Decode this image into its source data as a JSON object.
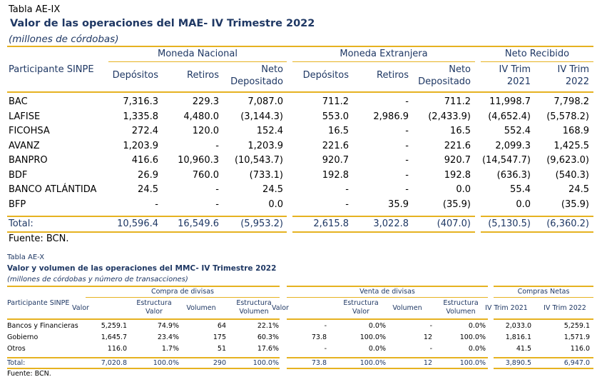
{
  "table1": {
    "label": "Tabla AE-IX",
    "title": "Valor de las operaciones del MAE- IV Trimestre 2022",
    "subtitle": "(millones de córdobas)",
    "groups": [
      "Moneda Nacional",
      "Moneda Extranjera",
      "Neto Recibido"
    ],
    "participant_header": "Participante SINPE",
    "col_headers": [
      [
        "Depósitos"
      ],
      [
        "Retiros"
      ],
      [
        "Neto",
        "Depositado"
      ],
      [
        "Depósitos"
      ],
      [
        "Retiros"
      ],
      [
        "Neto",
        "Depositado"
      ],
      [
        "IV Trim",
        "2021"
      ],
      [
        "IV Trim",
        "2022"
      ]
    ],
    "rows": [
      {
        "name": "BAC",
        "values": [
          "7,316.3",
          "229.3",
          "7,087.0",
          "711.2",
          "-",
          "711.2",
          "11,998.7",
          "7,798.2"
        ]
      },
      {
        "name": "LAFISE",
        "values": [
          "1,335.8",
          "4,480.0",
          "(3,144.3)",
          "553.0",
          "2,986.9",
          "(2,433.9)",
          "(4,652.4)",
          "(5,578.2)"
        ]
      },
      {
        "name": "FICOHSA",
        "values": [
          "272.4",
          "120.0",
          "152.4",
          "16.5",
          "-",
          "16.5",
          "552.4",
          "168.9"
        ]
      },
      {
        "name": "AVANZ",
        "values": [
          "1,203.9",
          "-",
          "1,203.9",
          "221.6",
          "-",
          "221.6",
          "2,099.3",
          "1,425.5"
        ]
      },
      {
        "name": "BANPRO",
        "values": [
          "416.6",
          "10,960.3",
          "(10,543.7)",
          "920.7",
          "-",
          "920.7",
          "(14,547.7)",
          "(9,623.0)"
        ]
      },
      {
        "name": "BDF",
        "values": [
          "26.9",
          "760.0",
          "(733.1)",
          "192.8",
          "-",
          "192.8",
          "(636.3)",
          "(540.3)"
        ]
      },
      {
        "name": "BANCO ATLÁNTIDA",
        "values": [
          "24.5",
          "-",
          "24.5",
          "-",
          "-",
          "0.0",
          "55.4",
          "24.5"
        ]
      },
      {
        "name": "BFP",
        "values": [
          "-",
          "-",
          "0.0",
          "-",
          "35.9",
          "(35.9)",
          "0.0",
          "(35.9)"
        ]
      }
    ],
    "total": {
      "name": "Total:",
      "values": [
        "10,596.4",
        "16,549.6",
        "(5,953.2)",
        "2,615.8",
        "3,022.8",
        "(407.0)",
        "(5,130.5)",
        "(6,360.2)"
      ]
    },
    "source": "Fuente: BCN."
  },
  "table2": {
    "label": "Tabla AE-X",
    "title": "Valor y volumen de las operaciones del MMC- IV Trimestre 2022",
    "subtitle": "(millones de córdobas y número de transacciones)",
    "groups": [
      "Compra de divisas",
      "Venta de divisas",
      "Compras Netas"
    ],
    "participant_header": "Participante  SINPE",
    "col_headers": [
      [
        "Valor"
      ],
      [
        "Estructura",
        "Valor"
      ],
      [
        "Volumen"
      ],
      [
        "Estructura",
        "Volumen"
      ],
      [
        "Valor"
      ],
      [
        "Estructura",
        "Valor"
      ],
      [
        "Volumen"
      ],
      [
        "Estructura",
        "Volumen"
      ],
      [
        "IV Trim 2021"
      ],
      [
        "IV Trim 2022"
      ]
    ],
    "rows": [
      {
        "name": "Bancos y Financieras",
        "values": [
          "5,259.1",
          "74.9%",
          "64",
          "22.1%",
          "-",
          "0.0%",
          "-",
          "0.0%",
          "2,033.0",
          "5,259.1"
        ]
      },
      {
        "name": "Gobierno",
        "values": [
          "1,645.7",
          "23.4%",
          "175",
          "60.3%",
          "73.8",
          "100.0%",
          "12",
          "100.0%",
          "1,816.1",
          "1,571.9"
        ]
      },
      {
        "name": "Otros",
        "values": [
          "116.0",
          "1.7%",
          "51",
          "17.6%",
          "-",
          "0.0%",
          "-",
          "0.0%",
          "41.5",
          "116.0"
        ]
      }
    ],
    "total": {
      "name": "Total:",
      "values": [
        "7,020.8",
        "100.0%",
        "290",
        "100.0%",
        "73.8",
        "100.0%",
        "12",
        "100.0%",
        "3,890.5",
        "6,947.0"
      ]
    },
    "source": "Fuente: BCN."
  }
}
